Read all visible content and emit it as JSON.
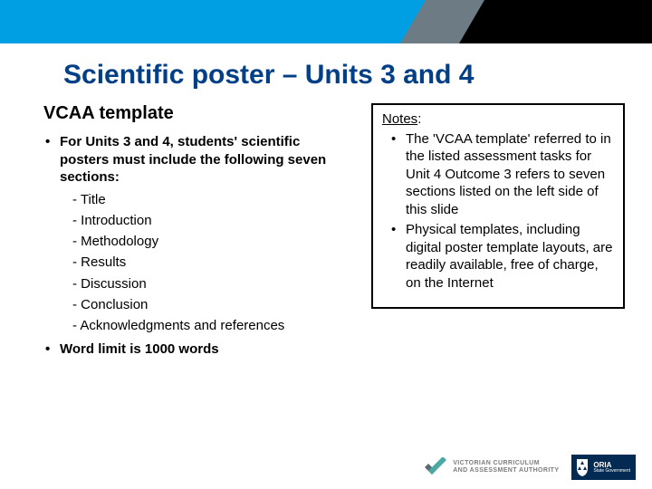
{
  "colors": {
    "blue": "#009fe3",
    "gray": "#6d7b84",
    "black": "#000000",
    "title": "#023f87",
    "navy": "#022a52",
    "vcaa_check_dark": "#5a6b74",
    "vcaa_check_teal": "#4aa8a5",
    "logo_gray": "#7c7c7c"
  },
  "title": "Scientific poster – Units 3 and 4",
  "subtitle": "VCAA template",
  "left": {
    "intro": "For Units 3 and 4, students' scientific posters must include the following seven sections:",
    "sections": [
      "Title",
      "Introduction",
      "Methodology",
      "Results",
      "Discussion",
      "Conclusion",
      "Acknowledgments and references"
    ],
    "word_limit": "Word limit is 1000 words"
  },
  "notes": {
    "label": "Notes",
    "items": [
      "The 'VCAA template' referred to in the listed assessment tasks for Unit 4 Outcome 3 refers to seven sections listed on the left side of this slide",
      "Physical templates, including digital poster template layouts, are readily available, free of charge, on the Internet"
    ]
  },
  "logos": {
    "vcaa_line1": "VICTORIAN CURRICULUM",
    "vcaa_line2": "AND ASSESSMENT AUTHORITY",
    "vic_main": "ORIA",
    "vic_sub": "State Government"
  }
}
